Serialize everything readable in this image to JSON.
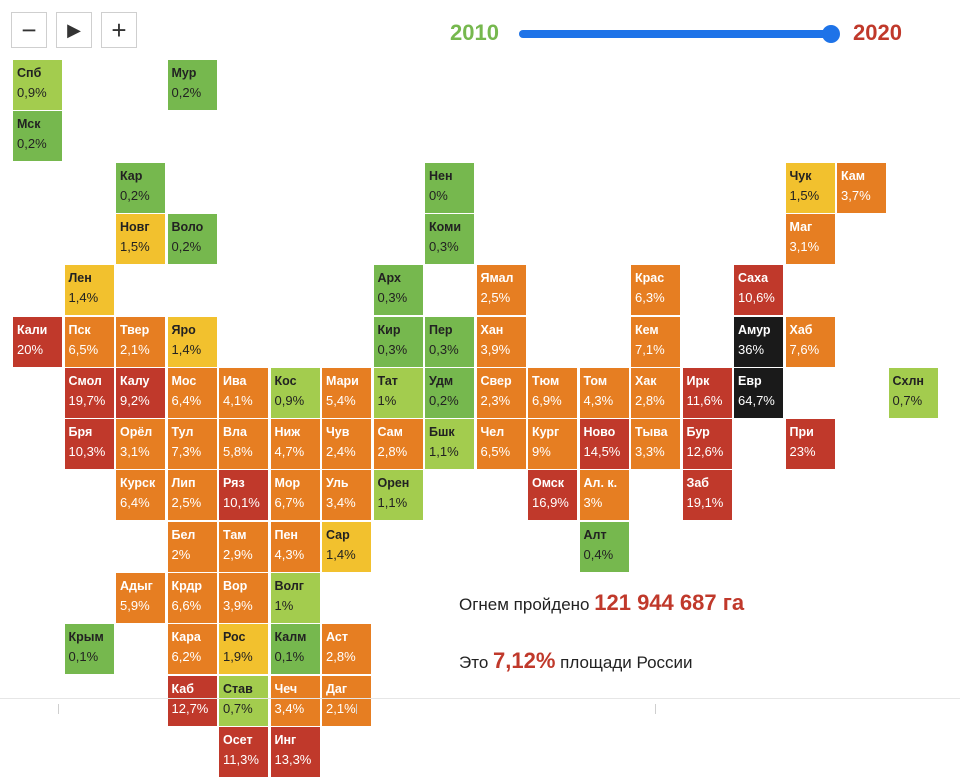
{
  "controls": {
    "minus_label": "−",
    "play_label": "▶",
    "plus_label": "+"
  },
  "slider": {
    "start_label": "2010",
    "end_label": "2020",
    "start_year": 2010,
    "end_year": 2020,
    "value": 2020,
    "track_color": "#1e73e8",
    "start_color": "#76b84e",
    "end_color": "#c0392b"
  },
  "legend_colors": {
    "green": "#76b84e",
    "light_green": "#a3cc4e",
    "yellow": "#f2c12e",
    "orange": "#e67e22",
    "red": "#c0392b",
    "black": "#1a1a1a"
  },
  "regions": [
    {
      "name": "Спб",
      "pct": "0,9%",
      "row": 0,
      "col": 0,
      "color": "light_green"
    },
    {
      "name": "Мур",
      "pct": "0,2%",
      "row": 0,
      "col": 3,
      "color": "green"
    },
    {
      "name": "Мск",
      "pct": "0,2%",
      "row": 1,
      "col": 0,
      "color": "green"
    },
    {
      "name": "Кар",
      "pct": "0,2%",
      "row": 2,
      "col": 2,
      "color": "green"
    },
    {
      "name": "Нен",
      "pct": "0%",
      "row": 2,
      "col": 8,
      "color": "green"
    },
    {
      "name": "Чук",
      "pct": "1,5%",
      "row": 2,
      "col": 15,
      "color": "yellow"
    },
    {
      "name": "Кам",
      "pct": "3,7%",
      "row": 2,
      "col": 16,
      "color": "orange"
    },
    {
      "name": "Новг",
      "pct": "1,5%",
      "row": 3,
      "col": 2,
      "color": "yellow"
    },
    {
      "name": "Воло",
      "pct": "0,2%",
      "row": 3,
      "col": 3,
      "color": "green"
    },
    {
      "name": "Коми",
      "pct": "0,3%",
      "row": 3,
      "col": 8,
      "color": "green"
    },
    {
      "name": "Маг",
      "pct": "3,1%",
      "row": 3,
      "col": 15,
      "color": "orange"
    },
    {
      "name": "Лен",
      "pct": "1,4%",
      "row": 4,
      "col": 1,
      "color": "yellow"
    },
    {
      "name": "Арх",
      "pct": "0,3%",
      "row": 4,
      "col": 7,
      "color": "green"
    },
    {
      "name": "Ямал",
      "pct": "2,5%",
      "row": 4,
      "col": 9,
      "color": "orange"
    },
    {
      "name": "Крас",
      "pct": "6,3%",
      "row": 4,
      "col": 12,
      "color": "orange"
    },
    {
      "name": "Саха",
      "pct": "10,6%",
      "row": 4,
      "col": 14,
      "color": "red"
    },
    {
      "name": "Кали",
      "pct": "20%",
      "row": 5,
      "col": 0,
      "color": "red",
      "bar": true
    },
    {
      "name": "Твер",
      "pct": "2,1%",
      "row": 5,
      "col": 2,
      "color": "orange"
    },
    {
      "name": "Яро",
      "pct": "1,4%",
      "row": 5,
      "col": 3,
      "color": "yellow"
    },
    {
      "name": "Пер",
      "pct": "0,3%",
      "row": 5,
      "col": 8,
      "color": "green"
    },
    {
      "name": "Хаб",
      "pct": "7,6%",
      "row": 5,
      "col": 15,
      "color": "orange"
    },
    {
      "name": "Пск",
      "pct": "6,5%",
      "row": 5,
      "col": 1,
      "color": "orange"
    },
    {
      "name": "Кир",
      "pct": "0,3%",
      "row": 5,
      "col": 7,
      "color": "green"
    },
    {
      "name": "Хан",
      "pct": "3,9%",
      "row": 5,
      "col": 9,
      "color": "orange"
    },
    {
      "name": "Кем",
      "pct": "7,1%",
      "row": 5,
      "col": 12,
      "color": "orange"
    },
    {
      "name": "Амур",
      "pct": "36%",
      "row": 5,
      "col": 14,
      "color": "black"
    },
    {
      "name": "Калу",
      "pct": "9,2%",
      "row": 6,
      "col": 2,
      "color": "red"
    },
    {
      "name": "Мос",
      "pct": "6,4%",
      "row": 6,
      "col": 3,
      "color": "orange"
    },
    {
      "name": "Ива",
      "pct": "4,1%",
      "row": 6,
      "col": 4,
      "color": "orange"
    },
    {
      "name": "Кос",
      "pct": "0,9%",
      "row": 6,
      "col": 5,
      "color": "light_green"
    },
    {
      "name": "Мари",
      "pct": "5,4%",
      "row": 6,
      "col": 6,
      "color": "orange"
    },
    {
      "name": "Удм",
      "pct": "0,2%",
      "row": 6,
      "col": 8,
      "color": "green"
    },
    {
      "name": "Тюм",
      "pct": "6,9%",
      "row": 6,
      "col": 10,
      "color": "orange"
    },
    {
      "name": "Том",
      "pct": "4,3%",
      "row": 6,
      "col": 11,
      "color": "orange"
    },
    {
      "name": "Ирк",
      "pct": "11,6%",
      "row": 6,
      "col": 13,
      "color": "red"
    },
    {
      "name": "Схлн",
      "pct": "0,7%",
      "row": 6,
      "col": 17,
      "color": "light_green"
    },
    {
      "name": "Смол",
      "pct": "19,7%",
      "row": 6,
      "col": 1,
      "color": "red"
    },
    {
      "name": "Тат",
      "pct": "1%",
      "row": 6,
      "col": 7,
      "color": "light_green"
    },
    {
      "name": "Свер",
      "pct": "2,3%",
      "row": 6,
      "col": 9,
      "color": "orange"
    },
    {
      "name": "Хак",
      "pct": "2,8%",
      "row": 6,
      "col": 12,
      "color": "orange"
    },
    {
      "name": "Евр",
      "pct": "64,7%",
      "row": 6,
      "col": 14,
      "color": "black"
    },
    {
      "name": "Орёл",
      "pct": "3,1%",
      "row": 7,
      "col": 2,
      "color": "orange"
    },
    {
      "name": "Тул",
      "pct": "7,3%",
      "row": 7,
      "col": 3,
      "color": "orange"
    },
    {
      "name": "Вла",
      "pct": "5,8%",
      "row": 7,
      "col": 4,
      "color": "orange"
    },
    {
      "name": "Ниж",
      "pct": "4,7%",
      "row": 7,
      "col": 5,
      "color": "orange"
    },
    {
      "name": "Чув",
      "pct": "2,4%",
      "row": 7,
      "col": 6,
      "color": "orange"
    },
    {
      "name": "Бшк",
      "pct": "1,1%",
      "row": 7,
      "col": 8,
      "color": "light_green"
    },
    {
      "name": "Кург",
      "pct": "9%",
      "row": 7,
      "col": 10,
      "color": "orange"
    },
    {
      "name": "Ново",
      "pct": "14,5%",
      "row": 7,
      "col": 11,
      "color": "red"
    },
    {
      "name": "Бур",
      "pct": "12,6%",
      "row": 7,
      "col": 13,
      "color": "red"
    },
    {
      "name": "Бря",
      "pct": "10,3%",
      "row": 7,
      "col": 1,
      "color": "red"
    },
    {
      "name": "Сам",
      "pct": "2,8%",
      "row": 7,
      "col": 7,
      "color": "orange"
    },
    {
      "name": "Чел",
      "pct": "6,5%",
      "row": 7,
      "col": 9,
      "color": "orange"
    },
    {
      "name": "Тыва",
      "pct": "3,3%",
      "row": 7,
      "col": 12,
      "color": "orange"
    },
    {
      "name": "При",
      "pct": "23%",
      "row": 7,
      "col": 15,
      "color": "red"
    },
    {
      "name": "Курск",
      "pct": "6,4%",
      "row": 8,
      "col": 2,
      "color": "orange"
    },
    {
      "name": "Лип",
      "pct": "2,5%",
      "row": 8,
      "col": 3,
      "color": "orange"
    },
    {
      "name": "Ряз",
      "pct": "10,1%",
      "row": 8,
      "col": 4,
      "color": "red"
    },
    {
      "name": "Мор",
      "pct": "6,7%",
      "row": 8,
      "col": 5,
      "color": "orange"
    },
    {
      "name": "Уль",
      "pct": "3,4%",
      "row": 8,
      "col": 6,
      "color": "orange"
    },
    {
      "name": "Омск",
      "pct": "16,9%",
      "row": 8,
      "col": 10,
      "color": "red"
    },
    {
      "name": "Ал. к.",
      "pct": "3%",
      "row": 8,
      "col": 11,
      "color": "orange"
    },
    {
      "name": "Заб",
      "pct": "19,1%",
      "row": 8,
      "col": 13,
      "color": "red"
    },
    {
      "name": "Орен",
      "pct": "1,1%",
      "row": 8,
      "col": 7,
      "color": "light_green"
    },
    {
      "name": "Бел",
      "pct": "2%",
      "row": 9,
      "col": 3,
      "color": "orange"
    },
    {
      "name": "Там",
      "pct": "2,9%",
      "row": 9,
      "col": 4,
      "color": "orange"
    },
    {
      "name": "Пен",
      "pct": "4,3%",
      "row": 9,
      "col": 5,
      "color": "orange"
    },
    {
      "name": "Сар",
      "pct": "1,4%",
      "row": 9,
      "col": 6,
      "color": "yellow"
    },
    {
      "name": "Алт",
      "pct": "0,4%",
      "row": 9,
      "col": 11,
      "color": "green"
    },
    {
      "name": "Крдр",
      "pct": "6,6%",
      "row": 10,
      "col": 3,
      "color": "orange"
    },
    {
      "name": "Вор",
      "pct": "3,9%",
      "row": 10,
      "col": 4,
      "color": "orange"
    },
    {
      "name": "Волг",
      "pct": "1%",
      "row": 10,
      "col": 5,
      "color": "light_green"
    },
    {
      "name": "Адыг",
      "pct": "5,9%",
      "row": 10,
      "col": 2,
      "color": "orange"
    },
    {
      "name": "Кара",
      "pct": "6,2%",
      "row": 11,
      "col": 3,
      "color": "orange"
    },
    {
      "name": "Рос",
      "pct": "1,9%",
      "row": 11,
      "col": 4,
      "color": "yellow"
    },
    {
      "name": "Калм",
      "pct": "0,1%",
      "row": 11,
      "col": 5,
      "color": "green"
    },
    {
      "name": "Крым",
      "pct": "0,1%",
      "row": 11,
      "col": 1,
      "color": "green"
    },
    {
      "name": "Аст",
      "pct": "2,8%",
      "row": 11,
      "col": 6,
      "color": "orange"
    },
    {
      "name": "Каб",
      "pct": "12,7%",
      "row": 12,
      "col": 3,
      "color": "red"
    },
    {
      "name": "Став",
      "pct": "0,7%",
      "row": 12,
      "col": 4,
      "color": "light_green"
    },
    {
      "name": "Чеч",
      "pct": "3,4%",
      "row": 12,
      "col": 5,
      "color": "orange"
    },
    {
      "name": "Даг",
      "pct": "2,1%",
      "row": 12,
      "col": 6,
      "color": "orange"
    },
    {
      "name": "Осет",
      "pct": "11,3%",
      "row": 13,
      "col": 4,
      "color": "red"
    },
    {
      "name": "Инг",
      "pct": "13,3%",
      "row": 13,
      "col": 5,
      "color": "red"
    }
  ],
  "stats": {
    "burned_prefix": "Огнем пройдено",
    "burned_value": "121 944 687 га",
    "share_prefix": "Это",
    "share_value": "7,12%",
    "share_suffix": "площади России"
  }
}
